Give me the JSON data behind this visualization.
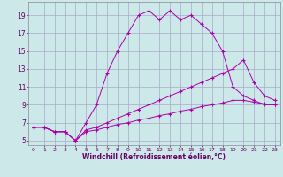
{
  "background_color": "#cce8e8",
  "grid_color": "#aaaacc",
  "line_color": "#aa00aa",
  "xlabel": "Windchill (Refroidissement éolien,°C)",
  "xlim": [
    -0.5,
    23.5
  ],
  "ylim": [
    4.5,
    20.5
  ],
  "yticks": [
    5,
    7,
    9,
    11,
    13,
    15,
    17,
    19
  ],
  "xticks": [
    0,
    1,
    2,
    3,
    4,
    5,
    6,
    7,
    8,
    9,
    10,
    11,
    12,
    13,
    14,
    15,
    16,
    17,
    18,
    19,
    20,
    21,
    22,
    23
  ],
  "series1_x": [
    0,
    1,
    2,
    3,
    4,
    5,
    6,
    7,
    8,
    9,
    10,
    11,
    12,
    13,
    14,
    15,
    16,
    17,
    18,
    19,
    20,
    21,
    22,
    23
  ],
  "series1_y": [
    6.5,
    6.5,
    6.0,
    6.0,
    5.0,
    7.0,
    9.0,
    12.5,
    15.0,
    17.0,
    19.0,
    19.5,
    18.5,
    19.5,
    18.5,
    19.0,
    18.0,
    17.0,
    15.0,
    11.0,
    10.0,
    9.5,
    9.0,
    9.0
  ],
  "series2_x": [
    0,
    1,
    2,
    3,
    4,
    5,
    6,
    7,
    8,
    9,
    10,
    11,
    12,
    13,
    14,
    15,
    16,
    17,
    18,
    19,
    20,
    21,
    22,
    23
  ],
  "series2_y": [
    6.5,
    6.5,
    6.0,
    6.0,
    5.0,
    6.2,
    6.5,
    7.0,
    7.5,
    8.0,
    8.5,
    9.0,
    9.5,
    10.0,
    10.5,
    11.0,
    11.5,
    12.0,
    12.5,
    13.0,
    14.0,
    11.5,
    10.0,
    9.5
  ],
  "series3_x": [
    0,
    1,
    2,
    3,
    4,
    5,
    6,
    7,
    8,
    9,
    10,
    11,
    12,
    13,
    14,
    15,
    16,
    17,
    18,
    19,
    20,
    21,
    22,
    23
  ],
  "series3_y": [
    6.5,
    6.5,
    6.0,
    6.0,
    5.0,
    6.0,
    6.2,
    6.5,
    6.8,
    7.0,
    7.3,
    7.5,
    7.8,
    8.0,
    8.3,
    8.5,
    8.8,
    9.0,
    9.2,
    9.5,
    9.5,
    9.3,
    9.1,
    9.0
  ]
}
